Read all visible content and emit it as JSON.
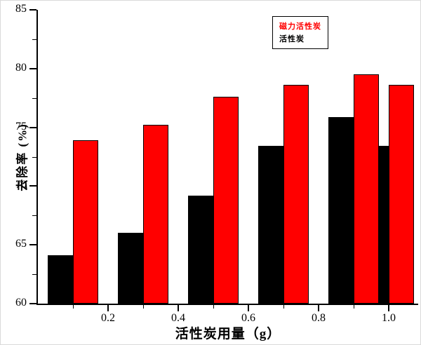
{
  "figure": {
    "background": "#ffffff"
  },
  "legend": {
    "entries": [
      {
        "label": "磁力活性炭",
        "color": "#ff0000"
      },
      {
        "label": "活性炭",
        "color": "#000000"
      }
    ]
  },
  "chart_data": {
    "type": "bar",
    "x": [
      0.1,
      0.3,
      0.5,
      0.7,
      0.9,
      1.0
    ],
    "series": [
      {
        "name": "磁力活性炭",
        "color": "#ff0000",
        "side": "right",
        "values": [
          73.9,
          75.2,
          77.6,
          78.6,
          79.5,
          78.6
        ]
      },
      {
        "name": "活性炭",
        "color": "#000000",
        "side": "left",
        "values": [
          64.1,
          66.0,
          69.2,
          73.4,
          75.9,
          73.4
        ]
      }
    ],
    "title": "",
    "xlabel": "活性炭用量（g）",
    "ylabel": "去除率 (%)",
    "xlim": [
      0,
      1.084
    ],
    "ylim": [
      60,
      85
    ],
    "bar_width": 0.072,
    "y_major_ticks": [
      60,
      65,
      70,
      75,
      80,
      85
    ],
    "y_minor_ticks": [
      62.5,
      67.5,
      72.5,
      77.5,
      82.5
    ],
    "x_major_ticks": [
      0.2,
      0.4,
      0.6,
      0.8,
      1.0
    ],
    "x_minor_ticks": [
      0.1,
      0.3,
      0.5,
      0.7,
      0.9
    ],
    "grid": false,
    "legend_position": "inside-top-right"
  }
}
